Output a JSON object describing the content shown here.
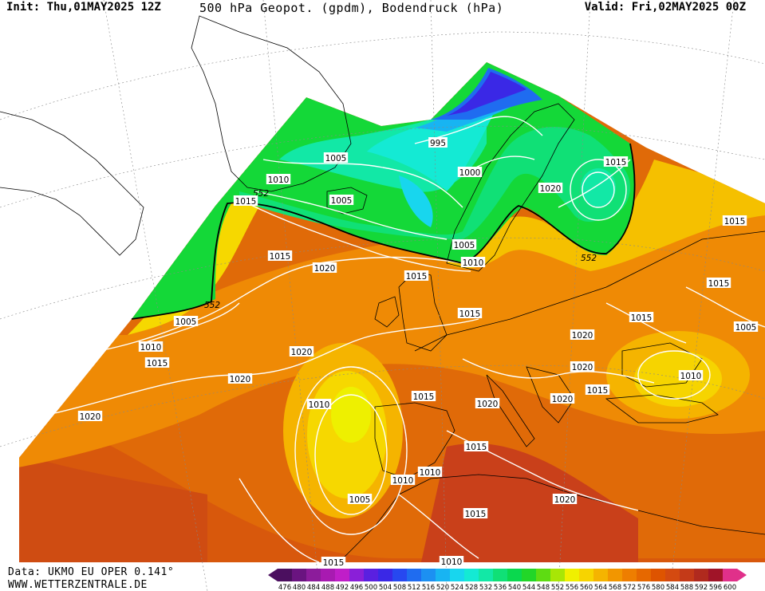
{
  "header": {
    "init": "Init: Thu,01MAY2025 12Z",
    "title": "500 hPa Geopot. (gpdm), Bodendruck (hPa)",
    "valid": "Valid: Fri,02MAY2025 00Z"
  },
  "footer": {
    "data_source": "Data: UKMO EU OPER 0.141°",
    "website": "WWW.WETTERZENTRALE.DE"
  },
  "map": {
    "fields": [
      "500 hPa geopotential (gpdm)",
      "surface pressure (hPa)"
    ],
    "geopotential_contour_label": "552",
    "isobar_labels": [
      {
        "value": "995",
        "area": "Norwegian Sea"
      },
      {
        "value": "1000",
        "area": "Norway coast"
      },
      {
        "value": "1005",
        "area": "Iceland"
      },
      {
        "value": "1005",
        "area": "North Atlantic"
      },
      {
        "value": "1005",
        "area": "North Sea"
      },
      {
        "value": "1010",
        "area": "Greenland Sea"
      },
      {
        "value": "1010",
        "area": "Denmark"
      },
      {
        "value": "1015",
        "area": "Ireland"
      },
      {
        "value": "1015",
        "area": "Greenland south"
      },
      {
        "value": "1015",
        "area": "Russia north"
      },
      {
        "value": "1020",
        "area": "Finland"
      },
      {
        "value": "1015",
        "area": "Ural"
      },
      {
        "value": "1015",
        "area": "Russia"
      },
      {
        "value": "1015",
        "area": "Ukraine"
      },
      {
        "value": "1005",
        "area": "Caspian"
      },
      {
        "value": "1020",
        "area": "Atlantic"
      },
      {
        "value": "1015",
        "area": "Atlantic west"
      },
      {
        "value": "1020",
        "area": "Atlantic central"
      },
      {
        "value": "1010",
        "area": "Atlantic west"
      },
      {
        "value": "1015",
        "area": "Atlantic west"
      },
      {
        "value": "1005",
        "area": "Atlantic southwest"
      },
      {
        "value": "1020",
        "area": "Atlantic mid"
      },
      {
        "value": "1020",
        "area": "Atlantic south"
      },
      {
        "value": "1010",
        "area": "Iberian low"
      },
      {
        "value": "1005",
        "area": "Iberian low"
      },
      {
        "value": "1015",
        "area": "Bay of Biscay"
      },
      {
        "value": "1015",
        "area": "UK"
      },
      {
        "value": "1020",
        "area": "Alps"
      },
      {
        "value": "1020",
        "area": "Balkans"
      },
      {
        "value": "1020",
        "area": "Hungary"
      },
      {
        "value": "1020",
        "area": "Greece"
      },
      {
        "value": "1015",
        "area": "Turkey"
      },
      {
        "value": "1010",
        "area": "Black Sea east"
      },
      {
        "value": "1015",
        "area": "Spain"
      },
      {
        "value": "1010",
        "area": "Morocco"
      },
      {
        "value": "1010",
        "area": "Algeria"
      },
      {
        "value": "1015",
        "area": "Tunisia"
      },
      {
        "value": "1020",
        "area": "Libya"
      },
      {
        "value": "1015",
        "area": "Canary"
      },
      {
        "value": "1010",
        "area": "Sahara"
      }
    ]
  },
  "colorbar": {
    "labels": [
      "476",
      "480",
      "484",
      "488",
      "492",
      "496",
      "500",
      "504",
      "508",
      "512",
      "516",
      "520",
      "524",
      "528",
      "532",
      "536",
      "540",
      "544",
      "548",
      "552",
      "556",
      "560",
      "564",
      "568",
      "572",
      "576",
      "580",
      "584",
      "588",
      "592",
      "596",
      "600"
    ],
    "colors": [
      "#4b0f5f",
      "#6a1480",
      "#8c1c9b",
      "#a81ab1",
      "#c01ec8",
      "#8a1fd8",
      "#5a20e0",
      "#3a28e6",
      "#2748f0",
      "#1f6cf0",
      "#1c90f2",
      "#18b4f2",
      "#18d6ee",
      "#14ead4",
      "#12e8a6",
      "#10e076",
      "#0ad84e",
      "#22d628",
      "#5edc12",
      "#a8e606",
      "#f0f000",
      "#f7d400",
      "#f5b400",
      "#f29600",
      "#ee7e00",
      "#e66800",
      "#de5400",
      "#d44a10",
      "#c43a18",
      "#b02a1e",
      "#a01428",
      "#e0308a"
    ]
  }
}
